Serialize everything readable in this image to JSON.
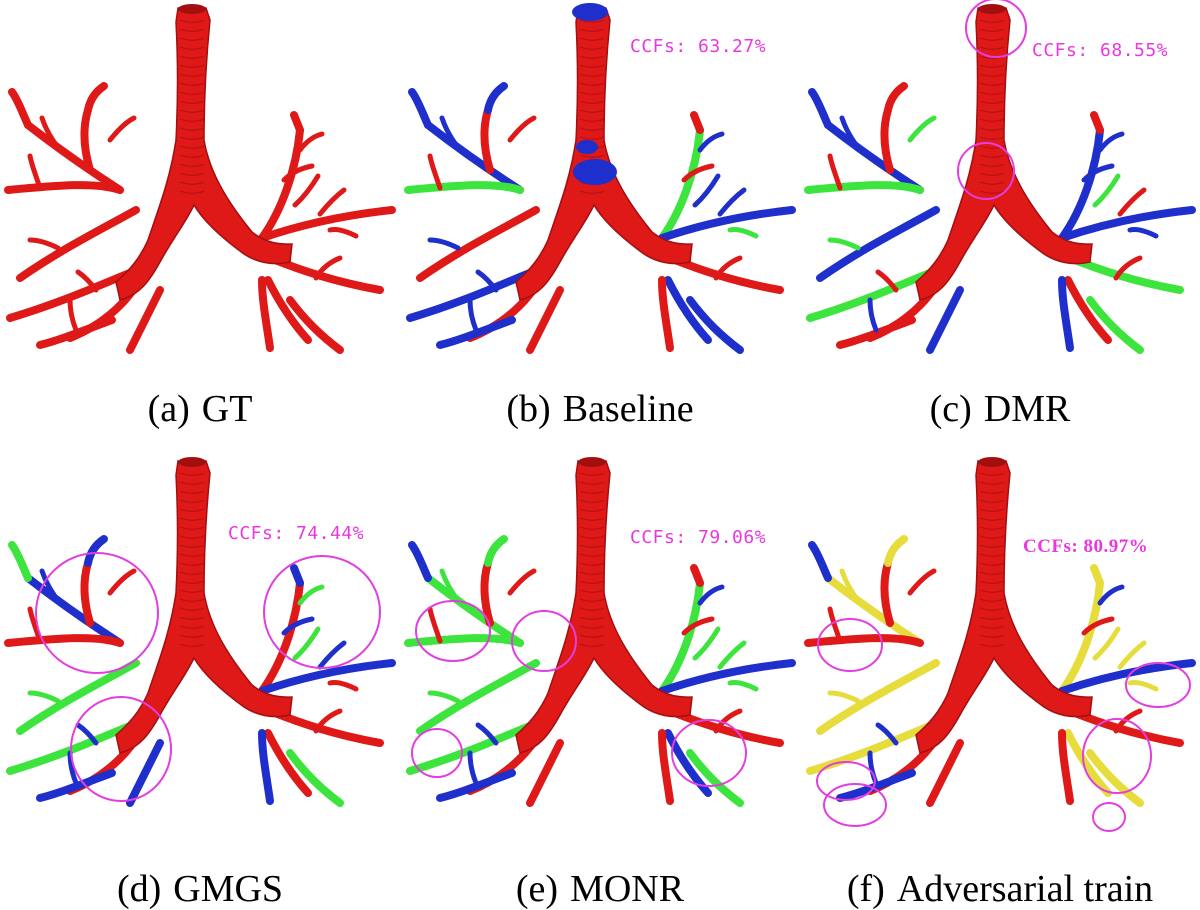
{
  "figure": {
    "panels": [
      {
        "label": "(a)",
        "name": "GT",
        "ccf_text": "",
        "bold": false,
        "blue": [],
        "green": [],
        "yellow": [],
        "blobs": [],
        "circles": []
      },
      {
        "label": "(b)",
        "name": "Baseline",
        "ccf_text": "CCFs: 63.27%",
        "bold": false,
        "blue": [
          0,
          1,
          4,
          6,
          9,
          12,
          14,
          16
        ],
        "green": [
          2,
          10
        ],
        "yellow": [],
        "blobs": [
          [
            190,
            12,
            18,
            9
          ],
          [
            195,
            172,
            22,
            13
          ],
          [
            187,
            147,
            11,
            7
          ]
        ],
        "circles": []
      },
      {
        "label": "(c)",
        "name": "DMR",
        "ccf_text": "CCFs: 68.55%",
        "bold": false,
        "blue": [
          0,
          1,
          5,
          8,
          10,
          12,
          15
        ],
        "green": [
          2,
          6,
          13,
          16
        ],
        "yellow": [],
        "blobs": [],
        "circles": [
          [
            196,
            28,
            30,
            29
          ],
          [
            186,
            171,
            28,
            28
          ]
        ]
      },
      {
        "label": "(d)",
        "name": "GMGS",
        "ccf_text": "CCFs: 74.44%",
        "bold": false,
        "blue": [
          0,
          4,
          8,
          9,
          11,
          12,
          15
        ],
        "green": [
          1,
          5,
          6,
          16
        ],
        "yellow": [],
        "blobs": [],
        "circles": [
          [
            97,
            160,
            61,
            60
          ],
          [
            322,
            159,
            58,
            56
          ],
          [
            121,
            296,
            50,
            52
          ]
        ]
      },
      {
        "label": "(e)",
        "name": "MONR",
        "ccf_text": "CCFs: 79.06%",
        "bold": false,
        "blue": [
          1,
          9,
          12,
          14
        ],
        "green": [
          0,
          2,
          4,
          5,
          6,
          10,
          16
        ],
        "yellow": [],
        "blobs": [],
        "circles": [
          [
            53,
            178,
            37,
            30
          ],
          [
            144,
            188,
            32,
            30
          ],
          [
            37,
            300,
            25,
            24
          ],
          [
            309,
            300,
            37,
            33
          ]
        ]
      },
      {
        "label": "(f)",
        "name": "Adversarial train",
        "ccf_text": "CCFs: 80.97%",
        "bold": true,
        "blue": [
          1,
          9,
          12
        ],
        "green": [],
        "yellow": [
          0,
          4,
          5,
          6,
          10,
          11,
          14,
          16
        ],
        "blobs": [],
        "circles": [
          [
            50,
            192,
            32,
            26
          ],
          [
            358,
            232,
            32,
            22
          ],
          [
            317,
            303,
            34,
            37
          ],
          [
            46,
            328,
            29,
            19
          ],
          [
            55,
            352,
            31,
            21
          ],
          [
            309,
            364,
            16,
            14
          ]
        ]
      }
    ]
  },
  "colors": {
    "airway": "#df1818",
    "airway_dark": "#a30f0f",
    "false_negative": "#1f2fcc",
    "green": "#3de43d",
    "yellow": "#e6dc3c",
    "circle": "#e23ee0",
    "ccf_text": "#ea38e0"
  }
}
